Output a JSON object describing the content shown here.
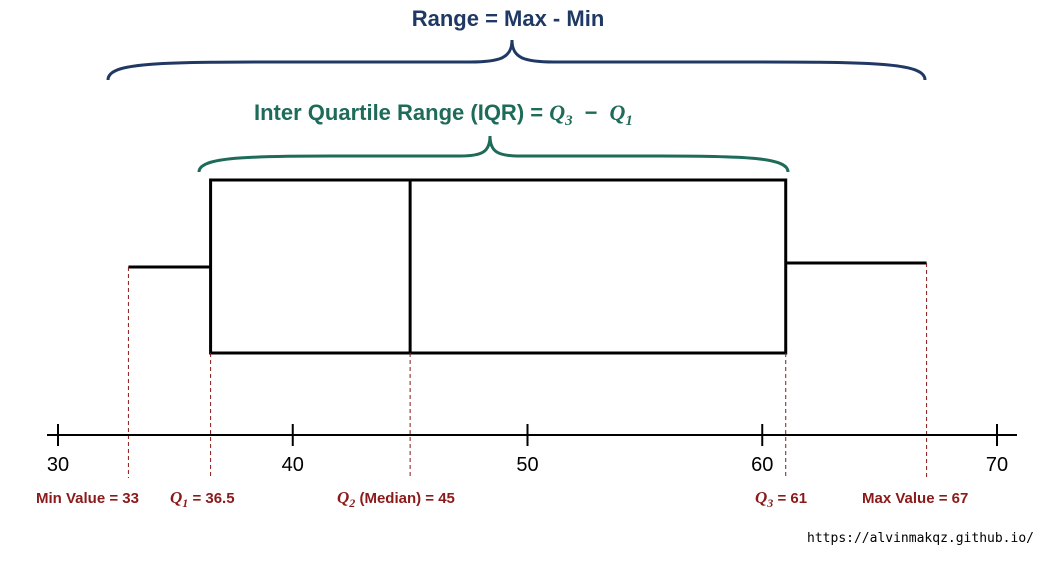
{
  "colors": {
    "range": "#1f3864",
    "iqr": "#1e6b5a",
    "marker": "#8b1a1a",
    "ink": "#000000"
  },
  "range_title": "Range = Max - Min",
  "iqr_title": {
    "text": "Inter Quartile Range (IQR) = ",
    "q3": "Q",
    "q3_sub": "3",
    "minus": "−",
    "q1": "Q",
    "q1_sub": "1"
  },
  "axis": {
    "min": 30,
    "max": 70,
    "ticks": [
      "30",
      "40",
      "50",
      "60",
      "70"
    ]
  },
  "markers": [
    {
      "id": "min",
      "value": 33,
      "text": "Min Value = 33"
    },
    {
      "id": "q1",
      "value": 36.5,
      "sym": "Q",
      "sub": "1",
      "text": " = 36.5"
    },
    {
      "id": "median",
      "value": 45,
      "sym": "Q",
      "sub": "2",
      "text": " (Median) = 45"
    },
    {
      "id": "q3",
      "value": 61,
      "sym": "Q",
      "sub": "3",
      "text": " = 61"
    },
    {
      "id": "max",
      "value": 67,
      "text": "Max Value = 67"
    }
  ],
  "credit": "https://alvinmakqz.github.io/"
}
